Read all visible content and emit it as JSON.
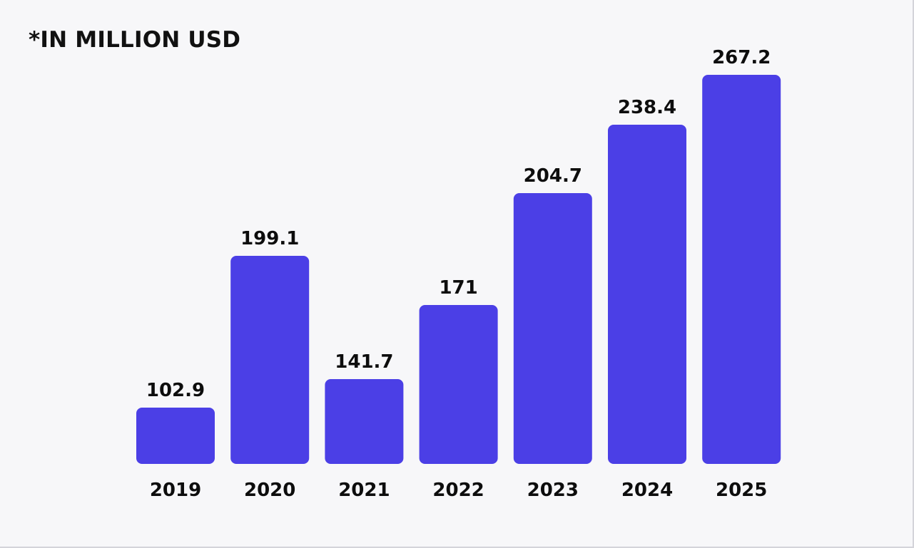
{
  "chart_data": {
    "type": "bar",
    "title": "*IN MILLION USD",
    "categories": [
      "2019",
      "2020",
      "2021",
      "2022",
      "2023",
      "2024",
      "2025"
    ],
    "values": [
      102.9,
      199.1,
      141.7,
      171,
      204.7,
      238.4,
      267.2
    ],
    "value_labels": [
      "102.9",
      "199.1",
      "141.7",
      "171",
      "204.7",
      "238.4",
      "267.2"
    ],
    "bar_color": "#4b3fe6",
    "grid": false,
    "legend": "none"
  }
}
